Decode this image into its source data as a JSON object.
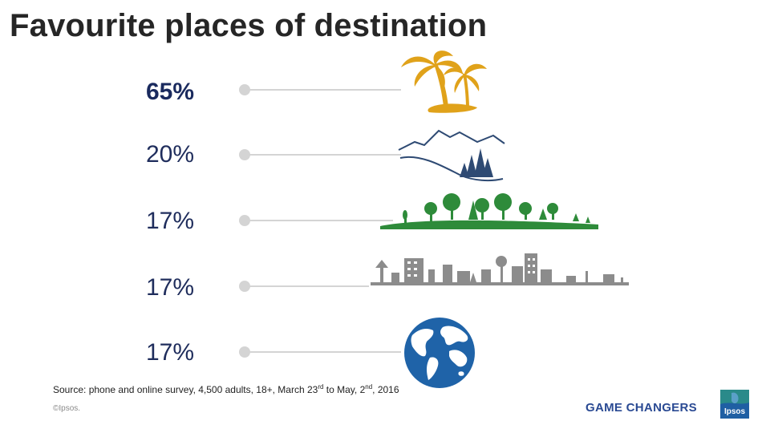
{
  "slide": {
    "title": "Favourite places of destination",
    "rows": [
      {
        "value": "65%",
        "icon": "palm-trees-icon",
        "color": "#e0a21a"
      },
      {
        "value": "20%",
        "icon": "mountains-icon",
        "color": "#2e4a73"
      },
      {
        "value": "17%",
        "icon": "countryside-icon",
        "color": "#2e8b3a"
      },
      {
        "value": "17%",
        "icon": "city-skyline-icon",
        "color": "#8c8c8c"
      },
      {
        "value": "17%",
        "icon": "globe-icon",
        "color": "#1f63a8"
      }
    ],
    "source": {
      "text1": "Source: phone and online survey, 4,500 adults, 18+, March 23",
      "sup1": "rd",
      "text2": " to May, 2",
      "sup2": "nd",
      "text3": ", 2016"
    },
    "copyright": "©Ipsos.",
    "brand_tagline": "GAME CHANGERS",
    "logo_text": "Ipsos",
    "colors": {
      "accent": "#1a2a5e",
      "brand": "#2a4a93",
      "line": "#d4d4d4"
    }
  }
}
